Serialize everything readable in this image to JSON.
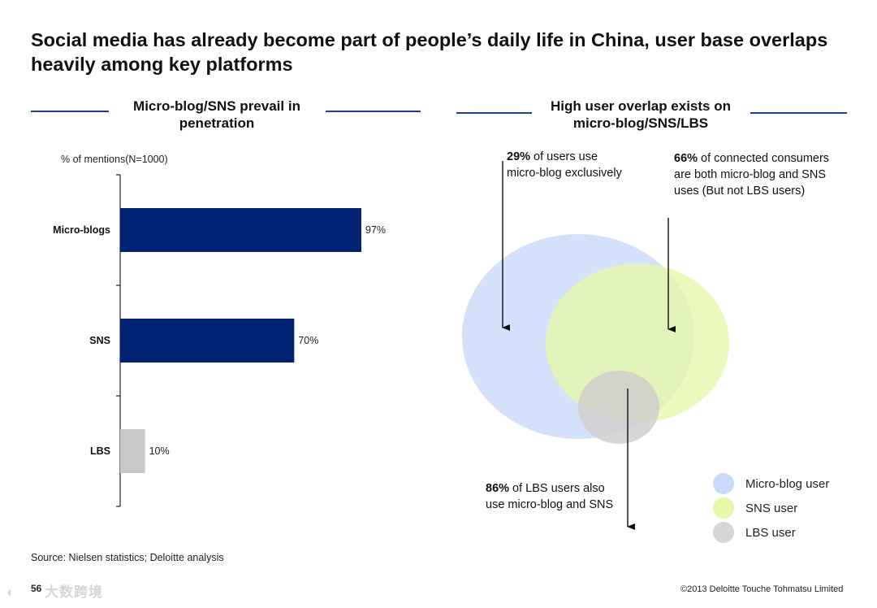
{
  "title": "Social media has already become part of people’s daily life in China, user base overlaps heavily among key platforms",
  "left_panel": {
    "heading": "Micro-blog/SNS prevail in penetration",
    "axis_note": "% of mentions(N=1000)"
  },
  "right_panel": {
    "heading": "High user overlap exists on micro-blog/SNS/LBS",
    "annotations": [
      {
        "bold": "29%",
        "text": " of users use micro-blog exclusively"
      },
      {
        "bold": "66%",
        "text": " of connected consumers are both micro-blog and SNS uses (But not LBS users)"
      },
      {
        "bold": "86%",
        "text": " of LBS users also use micro-blog and SNS"
      }
    ],
    "legend": [
      {
        "label": "Micro-blog user",
        "color": "#c9dafa"
      },
      {
        "label": "SNS user",
        "color": "#e6f7a6"
      },
      {
        "label": "LBS user",
        "color": "#d6d6d6"
      }
    ]
  },
  "chart_data": [
    {
      "type": "bar",
      "orientation": "horizontal",
      "title": "Micro-blog/SNS prevail in penetration",
      "ylabel": "% of mentions(N=1000)",
      "categories": [
        "Micro-blogs",
        "SNS",
        "LBS"
      ],
      "values": [
        97,
        70,
        10
      ],
      "value_labels": [
        "97%",
        "70%",
        "10%"
      ],
      "colors": [
        "#002373",
        "#002373",
        "#c8c8c8"
      ],
      "xlim": [
        0,
        100
      ]
    },
    {
      "type": "venn",
      "title": "High user overlap exists on micro-blog/SNS/LBS",
      "sets": [
        "Micro-blog user",
        "SNS user",
        "LBS user"
      ],
      "stats": [
        {
          "value": "29%",
          "description": "of users use micro-blog exclusively"
        },
        {
          "value": "66%",
          "description": "of connected consumers are both micro-blog and SNS uses (But not LBS users)"
        },
        {
          "value": "86%",
          "description": "of LBS users also use micro-blog and SNS"
        }
      ]
    }
  ],
  "footer": {
    "source": "Source: Nielsen statistics; Deloitte analysis",
    "page_number": "56",
    "copyright": "©2013 Deloitte Touche Tohmatsu Limited",
    "watermark": "大数跨境"
  }
}
